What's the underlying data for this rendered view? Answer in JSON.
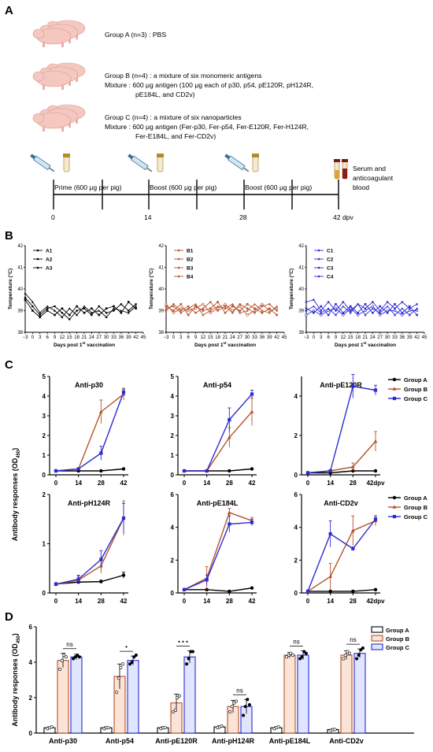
{
  "colors": {
    "group_a": "#000000",
    "group_b": "#b5532a",
    "group_c": "#2b2bd1",
    "pig": "#f4c8c0"
  },
  "panels": {
    "a": "A",
    "b": "B",
    "c": "C",
    "d": "D"
  },
  "scheme": {
    "group_a": "Group A (n=3) : PBS",
    "group_b_1": "Group B (n=4) : a mixture of six monomeric antigens",
    "group_b_2": "Mixture : 600 μg antigen (100 μg each of p30, p54, pE120R, pH124R,",
    "group_b_3": "pE184L, and CD2v)",
    "group_c_1": "Group C (n=4) : a mixture of six nanoparticles",
    "group_c_2": "Mixture : 600 μg antigen (Fer-p30, Fer-p54, Fer-E120R, Fer-H124R,",
    "group_c_3": "Fer-E184L, and Fer-CD2v)",
    "prime": "Prime (600 μg per pig)",
    "boost1": "Boost (600 μg per pig)",
    "boost2": "Boost (600 μg per pig)",
    "serum_1": "Serum and",
    "serum_2": "anticoagulant",
    "serum_3": "blood",
    "day_0": "0",
    "day_14": "14",
    "day_28": "28",
    "day_42": "42 dpv"
  },
  "chart_data": [
    {
      "id": "temp_A",
      "type": "line",
      "ylabel": "Temperature (°C)",
      "xlabel_main": "Days post 1",
      "xlabel_sup": "st",
      "xlabel_tail": " vaccination",
      "yticks": [
        "38",
        "39",
        "40",
        "41",
        "42"
      ],
      "ylim": [
        38,
        42
      ],
      "xlim": [
        -3,
        45
      ],
      "xticks": [
        "−3",
        "0",
        "3",
        "6",
        "9",
        "12",
        "15",
        "18",
        "21",
        "24",
        "27",
        "30",
        "33",
        "36",
        "39",
        "42",
        "45"
      ],
      "x": [
        -3,
        0,
        3,
        6,
        9,
        12,
        15,
        18,
        21,
        24,
        27,
        30,
        33,
        36,
        39,
        42
      ],
      "series": [
        {
          "name": "A1",
          "values": [
            39.6,
            39.2,
            38.8,
            39.1,
            39.2,
            38.9,
            38.6,
            39.0,
            39.1,
            38.8,
            39.2,
            38.9,
            39.0,
            39.3,
            39.0,
            39.3
          ]
        },
        {
          "name": "A2",
          "values": [
            39.5,
            39.0,
            38.7,
            39.0,
            38.8,
            39.1,
            38.8,
            39.2,
            38.9,
            39.1,
            38.8,
            39.1,
            39.2,
            38.9,
            39.4,
            39.1
          ]
        },
        {
          "name": "A3",
          "values": [
            39.8,
            39.4,
            38.9,
            39.2,
            39.0,
            38.7,
            39.1,
            38.8,
            39.2,
            38.9,
            39.0,
            38.7,
            39.1,
            39.0,
            38.9,
            39.2
          ]
        }
      ]
    },
    {
      "id": "temp_B",
      "type": "line",
      "ylabel": "Temperature (°C)",
      "xlabel_main": "Days post 1",
      "xlabel_sup": "st",
      "xlabel_tail": " vaccination",
      "yticks": [
        "38",
        "39",
        "40",
        "41",
        "42"
      ],
      "ylim": [
        38,
        42
      ],
      "xlim": [
        -3,
        45
      ],
      "xticks": [
        "−3",
        "0",
        "3",
        "6",
        "9",
        "12",
        "15",
        "18",
        "21",
        "24",
        "27",
        "30",
        "33",
        "36",
        "39",
        "42",
        "45"
      ],
      "x": [
        -3,
        0,
        3,
        6,
        9,
        12,
        15,
        18,
        21,
        24,
        27,
        30,
        33,
        36,
        39,
        42
      ],
      "series": [
        {
          "name": "B1",
          "values": [
            39.0,
            39.3,
            39.0,
            39.2,
            38.9,
            39.1,
            39.4,
            39.0,
            39.2,
            38.9,
            39.3,
            39.1,
            38.9,
            39.2,
            39.3,
            39.0
          ]
        },
        {
          "name": "B2",
          "values": [
            39.2,
            39.0,
            39.3,
            38.8,
            39.2,
            39.0,
            39.1,
            39.4,
            38.9,
            39.2,
            39.0,
            39.3,
            39.1,
            38.9,
            39.1,
            38.8
          ]
        },
        {
          "name": "B3",
          "values": [
            39.1,
            39.2,
            38.9,
            39.1,
            39.3,
            38.8,
            39.0,
            39.2,
            39.1,
            39.3,
            38.9,
            39.0,
            39.3,
            39.0,
            38.9,
            39.2
          ]
        },
        {
          "name": "B4",
          "values": [
            39.3,
            38.9,
            39.1,
            39.0,
            39.1,
            39.3,
            38.9,
            39.1,
            39.3,
            39.0,
            39.2,
            38.8,
            39.0,
            39.3,
            39.0,
            39.1
          ]
        }
      ]
    },
    {
      "id": "temp_C",
      "type": "line",
      "ylabel": "Temperature (°C)",
      "xlabel_main": "Days post 1",
      "xlabel_sup": "st",
      "xlabel_tail": " vaccination",
      "yticks": [
        "38",
        "39",
        "40",
        "41",
        "42"
      ],
      "ylim": [
        38,
        42
      ],
      "xlim": [
        -3,
        45
      ],
      "xticks": [
        "−3",
        "0",
        "3",
        "6",
        "9",
        "12",
        "15",
        "18",
        "21",
        "24",
        "27",
        "30",
        "33",
        "36",
        "39",
        "42",
        "45"
      ],
      "x": [
        -3,
        0,
        3,
        6,
        9,
        12,
        15,
        18,
        21,
        24,
        27,
        30,
        33,
        36,
        39,
        42
      ],
      "series": [
        {
          "name": "C1",
          "values": [
            39.4,
            39.5,
            39.0,
            39.4,
            39.0,
            39.4,
            39.0,
            39.3,
            39.1,
            39.4,
            39.0,
            39.4,
            39.1,
            39.4,
            39.1,
            39.3
          ]
        },
        {
          "name": "C2",
          "values": [
            39.1,
            38.9,
            39.2,
            38.8,
            39.3,
            38.9,
            39.2,
            38.9,
            39.3,
            38.9,
            39.2,
            38.9,
            39.3,
            38.9,
            39.2,
            38.8
          ]
        },
        {
          "name": "C3",
          "values": [
            39.0,
            39.2,
            38.9,
            39.1,
            38.8,
            39.2,
            38.9,
            39.3,
            38.8,
            39.1,
            38.9,
            39.2,
            38.8,
            39.1,
            38.8,
            39.1
          ]
        },
        {
          "name": "C4",
          "values": [
            38.8,
            39.0,
            38.8,
            39.0,
            39.1,
            38.8,
            39.1,
            38.8,
            39.0,
            39.2,
            38.8,
            39.0,
            39.0,
            38.8,
            39.0,
            39.0
          ]
        }
      ]
    },
    {
      "id": "ab_p30",
      "type": "line",
      "title": "Anti-p30",
      "x": [
        0,
        14,
        28,
        42
      ],
      "xticks": [
        "0",
        "14",
        "28",
        "42"
      ],
      "ylim": [
        0,
        5
      ],
      "yticks": [
        "0",
        "1",
        "2",
        "3",
        "4",
        "5"
      ],
      "series": [
        {
          "name": "Group A",
          "values": [
            0.2,
            0.2,
            0.2,
            0.3
          ],
          "err": [
            0.02,
            0.02,
            0.02,
            0.02
          ]
        },
        {
          "name": "Group B",
          "values": [
            0.2,
            0.3,
            3.2,
            4.1
          ],
          "err": [
            0.03,
            0.05,
            0.6,
            0.3
          ]
        },
        {
          "name": "Group C",
          "values": [
            0.2,
            0.3,
            1.1,
            4.2
          ],
          "err": [
            0.03,
            0.05,
            0.35,
            0.15
          ]
        }
      ]
    },
    {
      "id": "ab_p54",
      "type": "line",
      "title": "Anti-p54",
      "x": [
        0,
        14,
        28,
        42
      ],
      "xticks": [
        "0",
        "14",
        "28",
        "42"
      ],
      "ylim": [
        0,
        5
      ],
      "yticks": [
        "0",
        "1",
        "2",
        "3",
        "4",
        "5"
      ],
      "series": [
        {
          "name": "Group A",
          "values": [
            0.2,
            0.2,
            0.2,
            0.3
          ],
          "err": [
            0.02,
            0.02,
            0.02,
            0.02
          ]
        },
        {
          "name": "Group B",
          "values": [
            0.2,
            0.2,
            1.9,
            3.2
          ],
          "err": [
            0.03,
            0.04,
            0.5,
            0.7
          ]
        },
        {
          "name": "Group C",
          "values": [
            0.2,
            0.2,
            2.8,
            4.1
          ],
          "err": [
            0.03,
            0.04,
            0.6,
            0.2
          ]
        }
      ]
    },
    {
      "id": "ab_pE120R",
      "type": "line",
      "title": "Anti-pE120R",
      "x": [
        0,
        14,
        28,
        42
      ],
      "xticks": [
        "0",
        "14",
        "28",
        "42dpv"
      ],
      "ylim": [
        0,
        5
      ],
      "yticks": [
        "0",
        "2",
        "4"
      ],
      "ytick_values": [
        0,
        2,
        4
      ],
      "series": [
        {
          "name": "Group A",
          "values": [
            0.1,
            0.1,
            0.2,
            0.2
          ],
          "err": [
            0.02,
            0.02,
            0.02,
            0.02
          ]
        },
        {
          "name": "Group B",
          "values": [
            0.1,
            0.2,
            0.4,
            1.7
          ],
          "err": [
            0.02,
            0.04,
            0.2,
            0.5
          ]
        },
        {
          "name": "Group C",
          "values": [
            0.1,
            0.2,
            4.5,
            4.3
          ],
          "err": [
            0.02,
            0.04,
            0.6,
            0.25
          ]
        }
      ]
    },
    {
      "id": "ab_pH124R",
      "type": "line",
      "title": "Anti-pH124R",
      "x": [
        0,
        14,
        28,
        42
      ],
      "xticks": [
        "0",
        "14",
        "28",
        "42"
      ],
      "ylim": [
        0,
        2
      ],
      "yticks": [
        "0",
        "1",
        "2"
      ],
      "series": [
        {
          "name": "Group A",
          "values": [
            0.18,
            0.22,
            0.23,
            0.36
          ],
          "err": [
            0.02,
            0.03,
            0.03,
            0.06
          ]
        },
        {
          "name": "Group B",
          "values": [
            0.17,
            0.26,
            0.55,
            1.52
          ],
          "err": [
            0.03,
            0.08,
            0.15,
            0.35
          ]
        },
        {
          "name": "Group C",
          "values": [
            0.18,
            0.28,
            0.68,
            1.52
          ],
          "err": [
            0.03,
            0.08,
            0.18,
            0.3
          ]
        }
      ]
    },
    {
      "id": "ab_pE184L",
      "type": "line",
      "title": "Anti-pE184L",
      "x": [
        0,
        14,
        28,
        42
      ],
      "xticks": [
        "0",
        "14",
        "28",
        "42"
      ],
      "ylim": [
        0,
        6
      ],
      "yticks": [
        "0",
        "2",
        "4",
        "6"
      ],
      "series": [
        {
          "name": "Group A",
          "values": [
            0.2,
            0.2,
            0.1,
            0.3
          ],
          "err": [
            0.02,
            0.02,
            0.02,
            0.02
          ]
        },
        {
          "name": "Group B",
          "values": [
            0.2,
            0.9,
            4.9,
            4.4
          ],
          "err": [
            0.03,
            0.7,
            0.25,
            0.2
          ]
        },
        {
          "name": "Group C",
          "values": [
            0.2,
            0.8,
            4.2,
            4.3
          ],
          "err": [
            0.03,
            0.3,
            0.5,
            0.2
          ]
        }
      ]
    },
    {
      "id": "ab_CD2v",
      "type": "line",
      "title": "Anti-CD2v",
      "x": [
        0,
        14,
        28,
        42
      ],
      "xticks": [
        "0",
        "14",
        "28",
        "42dpv"
      ],
      "ylim": [
        0,
        6
      ],
      "yticks": [
        "0",
        "2",
        "4",
        "6"
      ],
      "series": [
        {
          "name": "Group A",
          "values": [
            0.1,
            0.1,
            0.1,
            0.2
          ],
          "err": [
            0.02,
            0.02,
            0.02,
            0.02
          ]
        },
        {
          "name": "Group B",
          "values": [
            0.1,
            1.0,
            3.8,
            4.4
          ],
          "err": [
            0.02,
            0.8,
            0.9,
            0.3
          ]
        },
        {
          "name": "Group C",
          "values": [
            0.1,
            3.6,
            2.7,
            4.5
          ],
          "err": [
            0.02,
            0.8,
            0.1,
            0.2
          ]
        }
      ]
    },
    {
      "id": "bar_d",
      "type": "bar",
      "ylabel_main": "Antibody responses (OD",
      "ylabel_sub": "450",
      "ylabel_tail": ")",
      "categories": [
        "Anti-p30",
        "Anti-p54",
        "Anti-pE120R",
        "Anti-pH124R",
        "Anti-pE184L",
        "Anti-CD2v"
      ],
      "ylim": [
        0,
        6
      ],
      "yticks": [
        "0",
        "2",
        "4",
        "6"
      ],
      "series": [
        {
          "name": "Group A",
          "values": [
            0.3,
            0.3,
            0.3,
            0.35,
            0.3,
            0.2
          ],
          "err": [
            0.05,
            0.05,
            0.05,
            0.06,
            0.05,
            0.04
          ],
          "points": [
            [
              0.25,
              0.3,
              0.35
            ],
            [
              0.25,
              0.3,
              0.3
            ],
            [
              0.25,
              0.3,
              0.3
            ],
            [
              0.3,
              0.35,
              0.4
            ],
            [
              0.25,
              0.3,
              0.35
            ],
            [
              0.15,
              0.2,
              0.2
            ]
          ]
        },
        {
          "name": "Group B",
          "values": [
            4.1,
            3.2,
            1.7,
            1.5,
            4.4,
            4.4
          ],
          "err": [
            0.4,
            0.7,
            0.5,
            0.35,
            0.15,
            0.25
          ],
          "points": [
            [
              3.6,
              4.1,
              4.4,
              4.3
            ],
            [
              2.3,
              3.1,
              3.7,
              3.9
            ],
            [
              1.2,
              1.3,
              2.0,
              2.1
            ],
            [
              1.2,
              1.5,
              1.7,
              1.8
            ],
            [
              4.3,
              4.4,
              4.5,
              4.4
            ],
            [
              4.2,
              4.4,
              4.6,
              4.5
            ]
          ]
        },
        {
          "name": "Group C",
          "values": [
            4.3,
            4.1,
            4.3,
            1.5,
            4.4,
            4.5
          ],
          "err": [
            0.15,
            0.25,
            0.35,
            0.4,
            0.25,
            0.25
          ],
          "points": [
            [
              4.2,
              4.3,
              4.4,
              4.3
            ],
            [
              3.9,
              4.0,
              4.3,
              4.4
            ],
            [
              3.9,
              4.2,
              4.6,
              4.6
            ],
            [
              1.0,
              1.5,
              1.9,
              1.6
            ],
            [
              4.2,
              4.3,
              4.6,
              4.5
            ],
            [
              4.2,
              4.4,
              4.7,
              4.8
            ]
          ]
        }
      ],
      "significance": [
        "ns",
        "•",
        "• • •",
        "ns",
        "ns",
        "ns"
      ]
    }
  ],
  "panel_c": {
    "ylabel_main": "Antibody responses (OD",
    "ylabel_sub": "450",
    "ylabel_tail": ")",
    "xunit": "dpv"
  }
}
